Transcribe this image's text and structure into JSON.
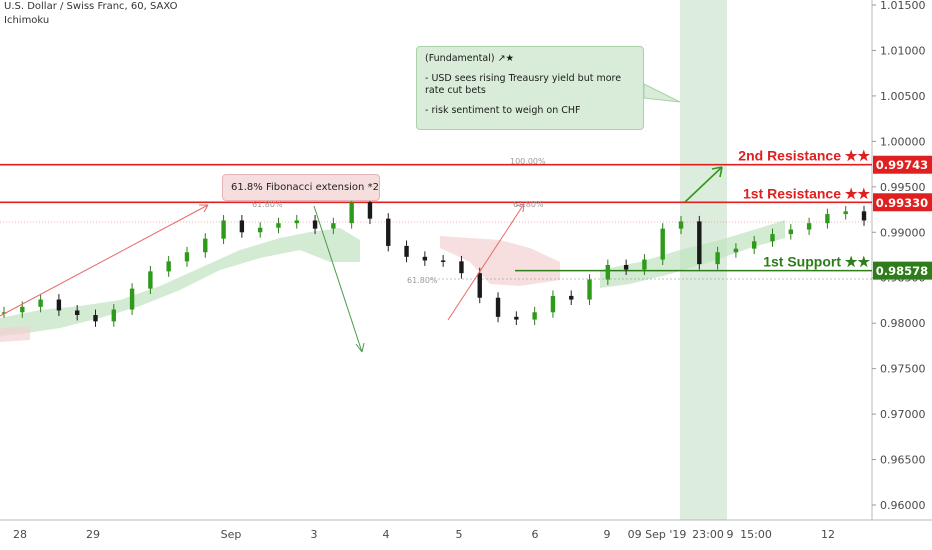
{
  "header": {
    "symbol_line": "U.S. Dollar / Swiss Franc, 60, SAXO",
    "indicator": "Ichimoku"
  },
  "note": {
    "title": "(Fundamental) ↗★",
    "line1": "-  USD sees rising Treausry yield but more rate cut bets",
    "line2": "- risk sentiment to weigh on CHF"
  },
  "fib_label": "61.8% Fibonacci extension *2",
  "fib_marks": {
    "a": "61.80%",
    "b": "100.00%",
    "c": "61.80%",
    "d": "61.80%"
  },
  "levels": [
    {
      "label": "2nd Resistance ★★",
      "value": "0.99743",
      "price": 0.99743,
      "color": "#e02020"
    },
    {
      "label": "1st Resistance ★★",
      "value": "0.99330",
      "price": 0.9933,
      "color": "#e02020"
    },
    {
      "label": "1st Support ★★",
      "value": "0.98578",
      "price": 0.98578,
      "color": "#2e7d1a"
    }
  ],
  "chart_data": {
    "type": "line",
    "title": "U.S. Dollar / Swiss Franc, 60, SAXO",
    "ylim": [
      0.9595,
      1.0155
    ],
    "y_ticks": [
      "1.01500",
      "1.01000",
      "1.00500",
      "1.00000",
      "0.99500",
      "0.99000",
      "0.98500",
      "0.98000",
      "0.97500",
      "0.97000",
      "0.96500",
      "0.96000"
    ],
    "x_ticks": [
      "28",
      "29",
      "Sep",
      "3",
      "4",
      "5",
      "6",
      "9",
      "09 Sep '19",
      "23:00",
      "9",
      "15:00",
      "12"
    ],
    "current_price": "0.99128",
    "series": [
      {
        "name": "",
        "x": [
          0,
          3,
          6,
          9,
          12,
          15,
          18,
          21,
          24,
          27,
          30,
          33,
          36,
          39,
          42,
          45,
          48,
          51,
          54,
          57,
          60,
          63,
          66,
          69,
          72,
          75,
          78,
          81,
          84,
          87,
          90,
          93,
          96,
          99,
          102,
          105,
          108,
          111,
          114,
          117,
          120,
          123,
          126,
          129,
          132,
          135,
          138,
          141
        ],
        "values": [
          0.9812,
          0.9818,
          0.9826,
          0.9814,
          0.9809,
          0.9802,
          0.9815,
          0.9838,
          0.9857,
          0.9868,
          0.9878,
          0.9893,
          0.9913,
          0.99,
          0.9905,
          0.991,
          0.9913,
          0.9904,
          0.991,
          0.9933,
          0.9915,
          0.9885,
          0.9873,
          0.9869,
          0.9868,
          0.9855,
          0.9828,
          0.9807,
          0.9804,
          0.9812,
          0.983,
          0.9826,
          0.9848,
          0.9864,
          0.9859,
          0.987,
          0.9904,
          0.9912,
          0.9865,
          0.9878,
          0.9882,
          0.989,
          0.9898,
          0.9903,
          0.991,
          0.992,
          0.9923,
          0.9913
        ]
      }
    ]
  }
}
